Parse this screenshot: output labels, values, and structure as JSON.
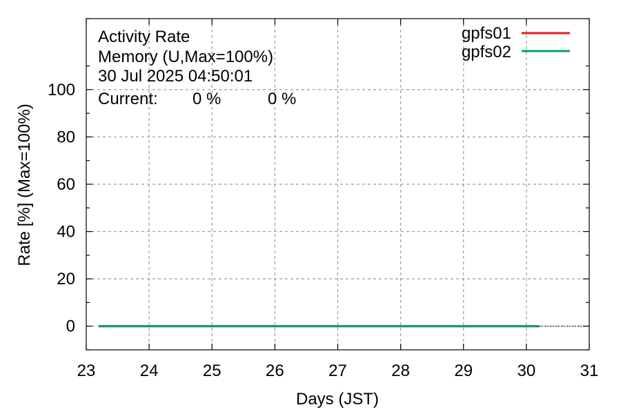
{
  "chart_data": {
    "type": "line",
    "title_lines": [
      "Activity Rate",
      "Memory (U,Max=100%)",
      "30 Jul 2025 04:50:01"
    ],
    "current_label": "Current:",
    "xlabel": "Days (JST)",
    "ylabel": "Rate [%]  (Max=100%)",
    "xlim": [
      23,
      31
    ],
    "ylim": [
      -10,
      130
    ],
    "x_ticks": [
      23,
      24,
      25,
      26,
      27,
      28,
      29,
      30,
      31
    ],
    "y_ticks": [
      0,
      20,
      40,
      60,
      80,
      100
    ],
    "grid": true,
    "legend_position": "top-right",
    "series": [
      {
        "name": "gpfs01",
        "color": "#e41a1c",
        "current": "0 %",
        "x": [
          23.2,
          30.2
        ],
        "values": [
          0,
          0
        ]
      },
      {
        "name": "gpfs02",
        "color": "#009e73",
        "current": "0 %",
        "x": [
          23.2,
          30.2
        ],
        "values": [
          0,
          0
        ]
      }
    ]
  }
}
